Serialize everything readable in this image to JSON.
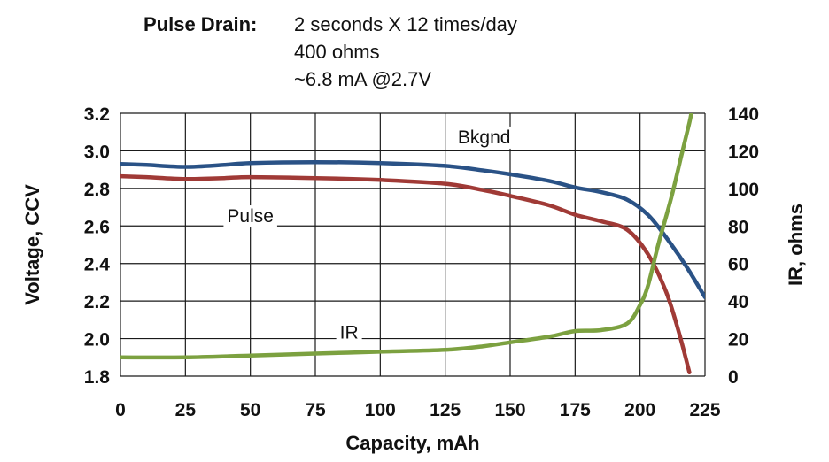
{
  "title": {
    "label": "Pulse Drain:",
    "lines": [
      "2 seconds X 12 times/day",
      "400 ohms",
      "~6.8 mA @2.7V"
    ]
  },
  "chart_data": {
    "type": "line",
    "xlabel": "Capacity, mAh",
    "ylabel_left": "Voltage, CCV",
    "ylabel_right": "IR, ohms",
    "xlim": [
      0,
      225
    ],
    "ylim_left": [
      1.8,
      3.2
    ],
    "ylim_right": [
      0,
      140
    ],
    "x_ticks": [
      0,
      25,
      50,
      75,
      100,
      125,
      150,
      175,
      200,
      225
    ],
    "y_left_ticks": [
      1.8,
      2.0,
      2.2,
      2.4,
      2.6,
      2.8,
      3.0,
      3.2
    ],
    "y_right_ticks": [
      0,
      20,
      40,
      60,
      80,
      100,
      120,
      140
    ],
    "grid": true,
    "series": [
      {
        "name": "Bkgnd",
        "axis": "left",
        "color": "#2a5286",
        "points": [
          [
            0,
            2.93
          ],
          [
            10,
            2.925
          ],
          [
            25,
            2.915
          ],
          [
            40,
            2.925
          ],
          [
            50,
            2.935
          ],
          [
            75,
            2.94
          ],
          [
            100,
            2.935
          ],
          [
            125,
            2.92
          ],
          [
            140,
            2.895
          ],
          [
            150,
            2.875
          ],
          [
            165,
            2.84
          ],
          [
            175,
            2.805
          ],
          [
            185,
            2.78
          ],
          [
            195,
            2.74
          ],
          [
            203,
            2.66
          ],
          [
            210,
            2.54
          ],
          [
            218,
            2.38
          ],
          [
            225,
            2.22
          ]
        ]
      },
      {
        "name": "Pulse",
        "axis": "left",
        "color": "#a03a36",
        "points": [
          [
            0,
            2.865
          ],
          [
            10,
            2.86
          ],
          [
            25,
            2.85
          ],
          [
            40,
            2.855
          ],
          [
            50,
            2.86
          ],
          [
            75,
            2.855
          ],
          [
            100,
            2.845
          ],
          [
            125,
            2.825
          ],
          [
            140,
            2.79
          ],
          [
            150,
            2.76
          ],
          [
            165,
            2.71
          ],
          [
            175,
            2.66
          ],
          [
            185,
            2.625
          ],
          [
            195,
            2.58
          ],
          [
            203,
            2.45
          ],
          [
            210,
            2.25
          ],
          [
            215,
            2.03
          ],
          [
            219,
            1.82
          ]
        ]
      },
      {
        "name": "IR",
        "axis": "right",
        "color": "#7ca140",
        "points": [
          [
            0,
            10
          ],
          [
            25,
            10
          ],
          [
            50,
            11
          ],
          [
            75,
            12
          ],
          [
            100,
            13
          ],
          [
            125,
            14
          ],
          [
            140,
            16
          ],
          [
            150,
            18
          ],
          [
            165,
            21
          ],
          [
            175,
            24
          ],
          [
            185,
            24.5
          ],
          [
            195,
            28
          ],
          [
            200,
            38
          ],
          [
            203,
            48
          ],
          [
            207,
            70
          ],
          [
            212,
            95
          ],
          [
            216,
            118
          ],
          [
            219,
            135
          ],
          [
            220,
            142
          ]
        ]
      }
    ],
    "annotations": [
      {
        "text": "Bkgnd",
        "x": 140,
        "y": 3.04
      },
      {
        "text": "Pulse",
        "x": 50,
        "y": 2.62
      },
      {
        "text": "IR",
        "x": 88,
        "y": 2.0
      }
    ]
  }
}
